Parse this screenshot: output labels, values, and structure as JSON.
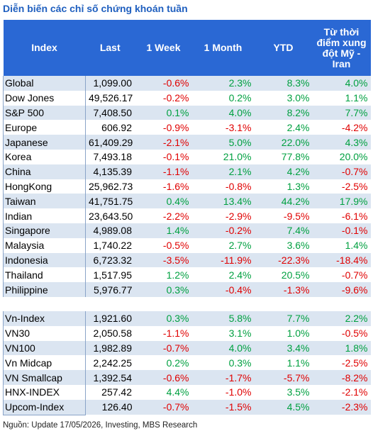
{
  "title": "Diễn biến các chỉ số chứng khoán tuần",
  "table": {
    "columns": [
      "Index",
      "Last",
      "1 Week",
      "1 Month",
      "YTD",
      "Từ thời điểm xung đột Mỹ - Iran"
    ],
    "sections": [
      {
        "rows": [
          [
            "Global",
            "1,099.00",
            "-0.6%",
            "2.3%",
            "8.3%",
            "4.0%"
          ],
          [
            "Dow Jones",
            "49,526.17",
            "-0.2%",
            "0.2%",
            "3.0%",
            "1.1%"
          ],
          [
            "S&P 500",
            "7,408.50",
            "0.1%",
            "4.0%",
            "8.2%",
            "7.7%"
          ],
          [
            "Europe",
            "606.92",
            "-0.9%",
            "-3.1%",
            "2.4%",
            "-4.2%"
          ],
          [
            "Japanese",
            "61,409.29",
            "-2.1%",
            "5.0%",
            "22.0%",
            "4.3%"
          ],
          [
            "Korea",
            "7,493.18",
            "-0.1%",
            "21.0%",
            "77.8%",
            "20.0%"
          ],
          [
            "China",
            "4,135.39",
            "-1.1%",
            "2.1%",
            "4.2%",
            "-0.7%"
          ],
          [
            "HongKong",
            "25,962.73",
            "-1.6%",
            "-0.8%",
            "1.3%",
            "-2.5%"
          ],
          [
            "Taiwan",
            "41,751.75",
            "0.4%",
            "13.4%",
            "44.2%",
            "17.9%"
          ],
          [
            "Indian",
            "23,643.50",
            "-2.2%",
            "-2.9%",
            "-9.5%",
            "-6.1%"
          ],
          [
            "Singapore",
            "4,989.08",
            "1.4%",
            "-0.2%",
            "7.4%",
            "-0.1%"
          ],
          [
            "Malaysia",
            "1,740.22",
            "-0.5%",
            "2.7%",
            "3.6%",
            "1.4%"
          ],
          [
            "Indonesia",
            "6,723.32",
            "-3.5%",
            "-11.9%",
            "-22.3%",
            "-18.4%"
          ],
          [
            "Thailand",
            "1,517.95",
            "1.2%",
            "2.4%",
            "20.5%",
            "-0.7%"
          ],
          [
            "Philippine",
            "5,976.77",
            "0.3%",
            "-0.4%",
            "-1.3%",
            "-9.6%"
          ]
        ]
      },
      {
        "rows": [
          [
            "Vn-Index",
            "1,921.60",
            "0.3%",
            "5.8%",
            "7.7%",
            "2.2%"
          ],
          [
            "VN30",
            "2,050.58",
            "-1.1%",
            "3.1%",
            "1.0%",
            "-0.5%"
          ],
          [
            "VN100",
            "1,982.89",
            "-0.7%",
            "4.0%",
            "3.4%",
            "1.8%"
          ],
          [
            "Vn Midcap",
            "2,242.25",
            "0.2%",
            "0.3%",
            "1.1%",
            "-2.5%"
          ],
          [
            "VN Smallcap",
            "1,392.54",
            "-0.6%",
            "-1.7%",
            "-5.7%",
            "-8.2%"
          ],
          [
            "HNX-INDEX",
            "257.42",
            "4.4%",
            "-1.0%",
            "3.5%",
            "-2.1%"
          ],
          [
            "Upcom-Index",
            "126.40",
            "-0.7%",
            "-1.5%",
            "4.5%",
            "-2.3%"
          ]
        ]
      }
    ]
  },
  "source": "Nguồn: Update  17/05/2026, Investing, MBS Research"
}
